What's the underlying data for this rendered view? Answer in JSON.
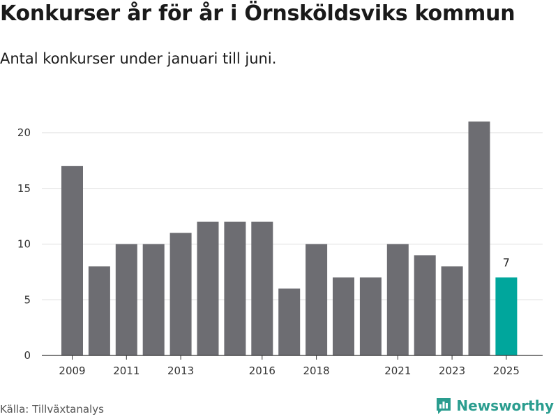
{
  "title": "Konkurser år för år i Örnsköldsviks kommun",
  "subtitle": "Antal konkurser under januari till juni.",
  "source": "Källa: Tillväxtanalys",
  "brand": {
    "name": "Newsworthy",
    "icon": "bar-chart-logo-icon"
  },
  "colors": {
    "bar": "#6d6d72",
    "highlight": "#00a69c",
    "grid": "#dddddd",
    "axis": "#333333",
    "brand": "#2a9d8f"
  },
  "chart_data": {
    "type": "bar",
    "title": "Konkurser år för år i Örnsköldsviks kommun",
    "subtitle": "Antal konkurser under januari till juni.",
    "categories": [
      "2009",
      "2010",
      "2011",
      "2012",
      "2013",
      "2014",
      "2015",
      "2016",
      "2017",
      "2018",
      "2019",
      "2020",
      "2021",
      "2022",
      "2023",
      "2024",
      "2025"
    ],
    "values": [
      17,
      8,
      10,
      10,
      11,
      12,
      12,
      12,
      6,
      10,
      7,
      7,
      10,
      9,
      8,
      21,
      7
    ],
    "highlight_index": 16,
    "data_labels": [
      {
        "category": "2025",
        "text": "7"
      }
    ],
    "x_tick_labels": [
      "2009",
      "2011",
      "2013",
      "2016",
      "2018",
      "2021",
      "2023",
      "2025"
    ],
    "y_ticks": [
      0,
      5,
      10,
      15,
      20
    ],
    "ylim": [
      0,
      22
    ],
    "xlabel": "",
    "ylabel": "",
    "grid": true
  }
}
